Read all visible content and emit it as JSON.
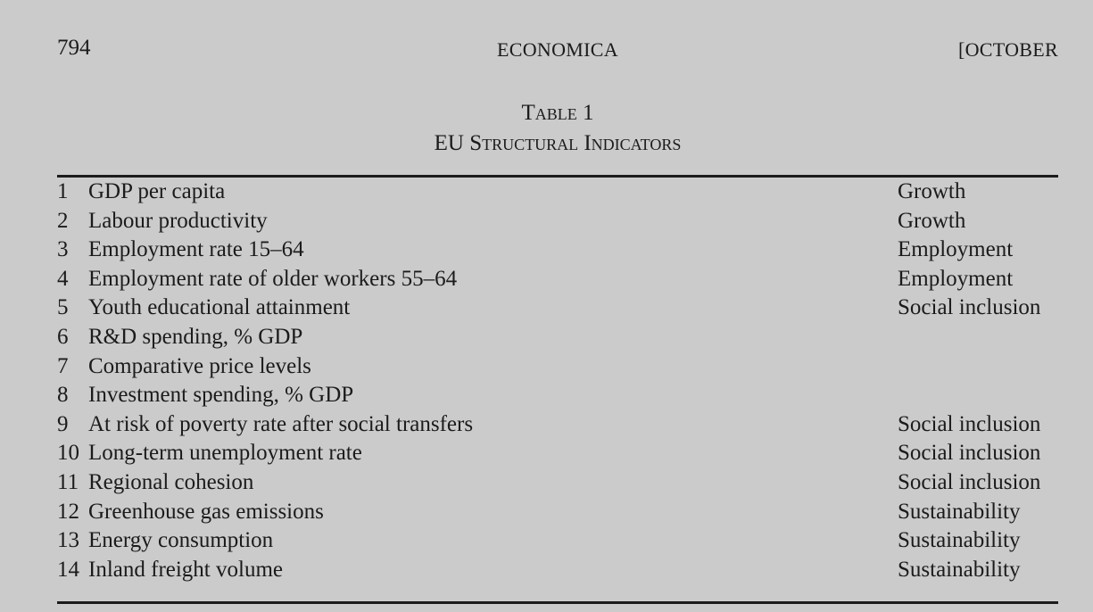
{
  "header": {
    "page_number": "794",
    "journal": "ECONOMICA",
    "issue": "[OCTOBER"
  },
  "table": {
    "label": "Table 1",
    "title": "EU Structural Indicators",
    "rows": [
      {
        "number": "1",
        "indicator": "GDP per capita",
        "category": "Growth"
      },
      {
        "number": "2",
        "indicator": "Labour productivity",
        "category": "Growth"
      },
      {
        "number": "3",
        "indicator": "Employment rate 15–64",
        "category": "Employment"
      },
      {
        "number": "4",
        "indicator": "Employment rate of older workers 55–64",
        "category": "Employment"
      },
      {
        "number": "5",
        "indicator": "Youth educational attainment",
        "category": "Social inclusion"
      },
      {
        "number": "6",
        "indicator": "R&D spending, % GDP",
        "category": ""
      },
      {
        "number": "7",
        "indicator": "Comparative price levels",
        "category": ""
      },
      {
        "number": "8",
        "indicator": "Investment spending, % GDP",
        "category": ""
      },
      {
        "number": "9",
        "indicator": "At risk of poverty rate after social transfers",
        "category": "Social inclusion"
      },
      {
        "number": "10",
        "indicator": "Long-term unemployment rate",
        "category": "Social inclusion"
      },
      {
        "number": "11",
        "indicator": "Regional cohesion",
        "category": "Social inclusion"
      },
      {
        "number": "12",
        "indicator": "Greenhouse gas emissions",
        "category": "Sustainability"
      },
      {
        "number": "13",
        "indicator": "Energy consumption",
        "category": "Sustainability"
      },
      {
        "number": "14",
        "indicator": "Inland freight volume",
        "category": "Sustainability"
      }
    ]
  }
}
